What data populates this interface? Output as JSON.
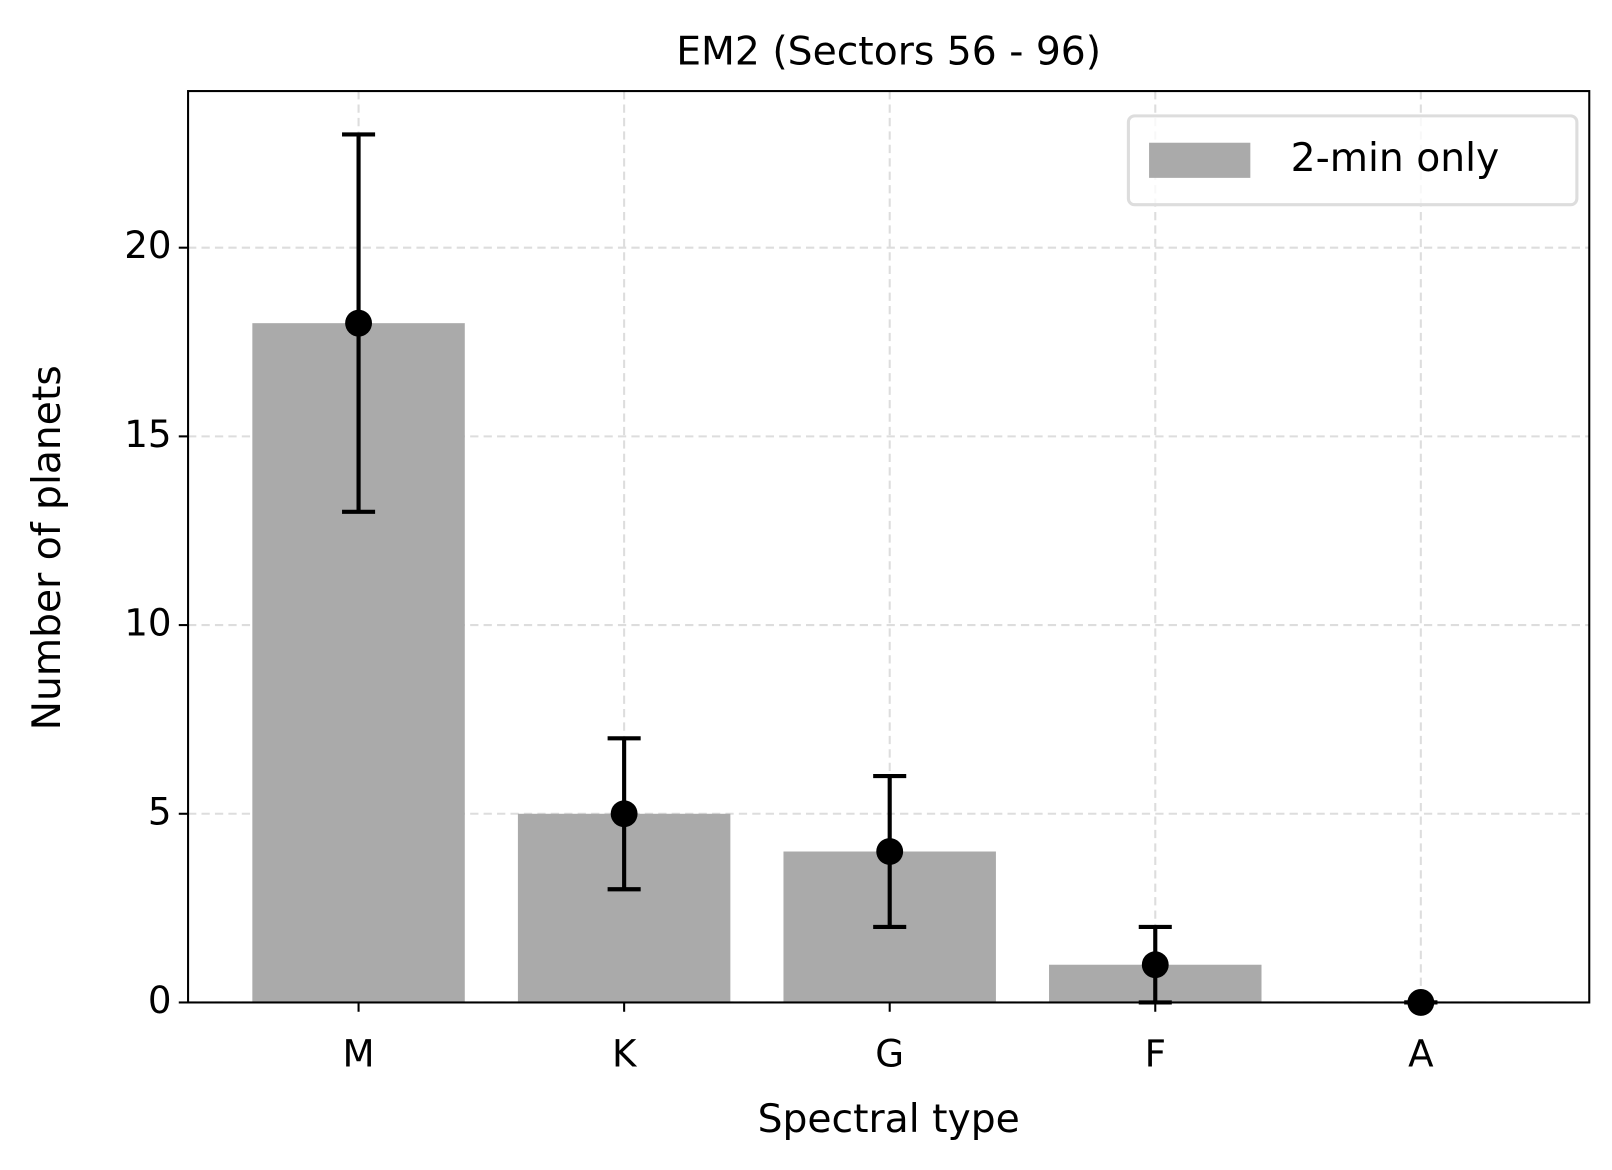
{
  "chart_data": {
    "type": "bar",
    "title": "EM2 (Sectors 56 - 96)",
    "x_label": "Spectral type",
    "y_label": "Number of planets",
    "categories": [
      "M",
      "K",
      "G",
      "F",
      "A"
    ],
    "series": [
      {
        "name": "2-min only",
        "color": "#aaaaaa",
        "values": [
          18,
          5,
          4,
          1,
          0
        ],
        "errors": [
          5,
          2,
          2,
          1,
          0
        ],
        "error_color": "#000000"
      }
    ],
    "ylim": [
      0,
      24.15
    ],
    "yticks": [
      0,
      5,
      10,
      15,
      20
    ],
    "grid": true,
    "legend": "upper right"
  }
}
